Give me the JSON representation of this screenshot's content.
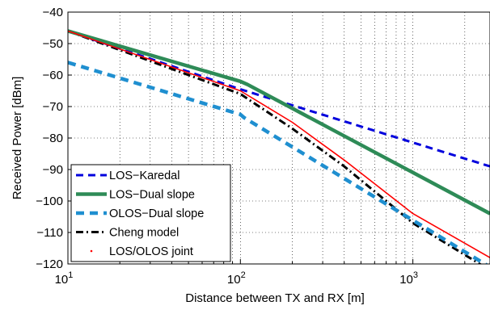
{
  "chart_data": {
    "type": "line",
    "xlabel": "Distance between TX and RX [m]",
    "ylabel": "Received Power [dBm]",
    "xscale": "log",
    "xlim": [
      10,
      2800
    ],
    "ylim": [
      -120,
      -40
    ],
    "grid": true,
    "grid_style": "dotted",
    "legend_position": "bottom-left",
    "xticks": [
      {
        "value": 10,
        "base": "10",
        "exp": "1"
      },
      {
        "value": 100,
        "base": "10",
        "exp": "2"
      },
      {
        "value": 1000,
        "base": "10",
        "exp": "3"
      }
    ],
    "yticks": [
      {
        "value": -40,
        "label": "−40"
      },
      {
        "value": -50,
        "label": "−50"
      },
      {
        "value": -60,
        "label": "−60"
      },
      {
        "value": -70,
        "label": "−70"
      },
      {
        "value": -80,
        "label": "−80"
      },
      {
        "value": -90,
        "label": "−90"
      },
      {
        "value": -100,
        "label": "−100"
      },
      {
        "value": -110,
        "label": "−110"
      },
      {
        "value": -120,
        "label": "−120"
      }
    ],
    "series": [
      {
        "name": "LOS−Karedal",
        "color": "#0000dd",
        "style": "dashed",
        "x": [
          10,
          100,
          2800
        ],
        "y": [
          -46,
          -64.5,
          -89
        ]
      },
      {
        "name": "LOS−Dual slope",
        "color": "#2e8b57",
        "style": "solid-thick",
        "x": [
          10,
          100,
          110,
          2800
        ],
        "y": [
          -46,
          -62,
          -63,
          -104
        ]
      },
      {
        "name": "OLOS−Dual slope",
        "color": "#1f8fd0",
        "style": "dashed-thick",
        "x": [
          10,
          100,
          105,
          2800
        ],
        "y": [
          -56,
          -72.5,
          -73.5,
          -121
        ]
      },
      {
        "name": "Cheng model",
        "color": "#000000",
        "style": "dashdot",
        "x": [
          10,
          100,
          200,
          400,
          1000,
          2800
        ],
        "y": [
          -46,
          -66,
          -77,
          -89,
          -107,
          -122
        ]
      },
      {
        "name": "LOS/OLOS joint",
        "color": "#ff0000",
        "style": "thin-solid",
        "x": [
          10,
          100,
          200,
          400,
          1000,
          2800
        ],
        "y": [
          -46,
          -65,
          -75,
          -87,
          -104,
          -118
        ]
      }
    ]
  }
}
